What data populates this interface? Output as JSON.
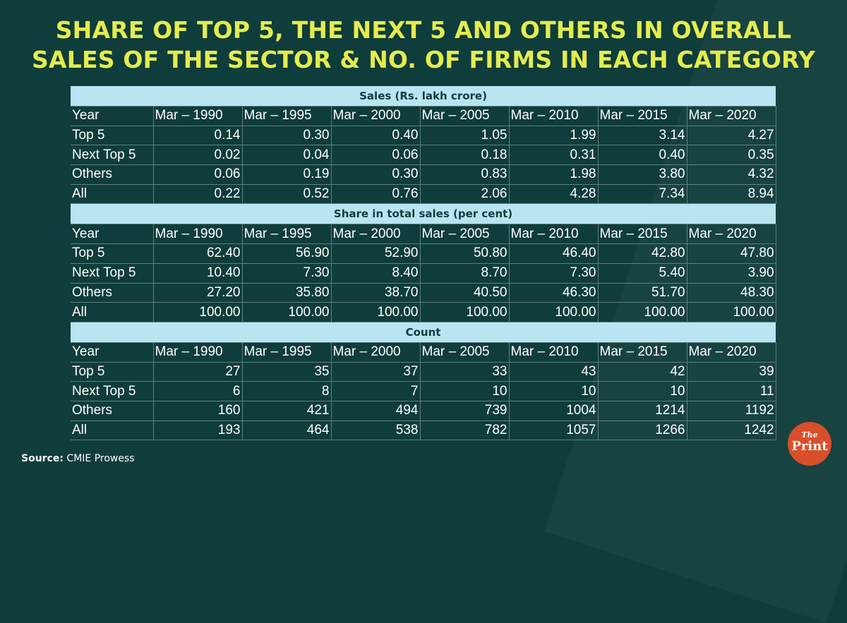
{
  "title_lines": [
    "SHARE OF TOP 5, THE NEXT 5 AND OTHERS IN OVERALL",
    "SALES OF THE SECTOR & NO. OF FIRMS IN EACH CATEGORY"
  ],
  "source": {
    "label": "Source:",
    "text": "CMIE Prowess"
  },
  "logo": {
    "line1": "The",
    "line2": "Print"
  },
  "chart_data": {
    "type": "table",
    "columns": [
      "Year",
      "Mar – 1990",
      "Mar – 1995",
      "Mar – 2000",
      "Mar – 2005",
      "Mar – 2010",
      "Mar – 2015",
      "Mar – 2020"
    ],
    "sections": [
      {
        "heading": "Sales (Rs. lakh crore)",
        "rows": [
          {
            "label": "Top 5",
            "values": [
              "0.14",
              "0.30",
              "0.40",
              "1.05",
              "1.99",
              "3.14",
              "4.27"
            ]
          },
          {
            "label": "Next Top 5",
            "values": [
              "0.02",
              "0.04",
              "0.06",
              "0.18",
              "0.31",
              "0.40",
              "0.35"
            ]
          },
          {
            "label": "Others",
            "values": [
              "0.06",
              "0.19",
              "0.30",
              "0.83",
              "1.98",
              "3.80",
              "4.32"
            ]
          },
          {
            "label": "All",
            "values": [
              "0.22",
              "0.52",
              "0.76",
              "2.06",
              "4.28",
              "7.34",
              "8.94"
            ]
          }
        ]
      },
      {
        "heading": "Share in total sales (per cent)",
        "rows": [
          {
            "label": "Top 5",
            "values": [
              "62.40",
              "56.90",
              "52.90",
              "50.80",
              "46.40",
              "42.80",
              "47.80"
            ]
          },
          {
            "label": "Next Top 5",
            "values": [
              "10.40",
              "7.30",
              "8.40",
              "8.70",
              "7.30",
              "5.40",
              "3.90"
            ]
          },
          {
            "label": "Others",
            "values": [
              "27.20",
              "35.80",
              "38.70",
              "40.50",
              "46.30",
              "51.70",
              "48.30"
            ]
          },
          {
            "label": "All",
            "values": [
              "100.00",
              "100.00",
              "100.00",
              "100.00",
              "100.00",
              "100.00",
              "100.00"
            ]
          }
        ]
      },
      {
        "heading": "Count",
        "rows": [
          {
            "label": "Top 5",
            "values": [
              "27",
              "35",
              "37",
              "33",
              "43",
              "42",
              "39"
            ]
          },
          {
            "label": "Next Top 5",
            "values": [
              "6",
              "8",
              "7",
              "10",
              "10",
              "10",
              "11"
            ]
          },
          {
            "label": "Others",
            "values": [
              "160",
              "421",
              "494",
              "739",
              "1004",
              "1214",
              "1192"
            ]
          },
          {
            "label": "All",
            "values": [
              "193",
              "464",
              "538",
              "782",
              "1057",
              "1266",
              "1242"
            ]
          }
        ]
      }
    ]
  }
}
